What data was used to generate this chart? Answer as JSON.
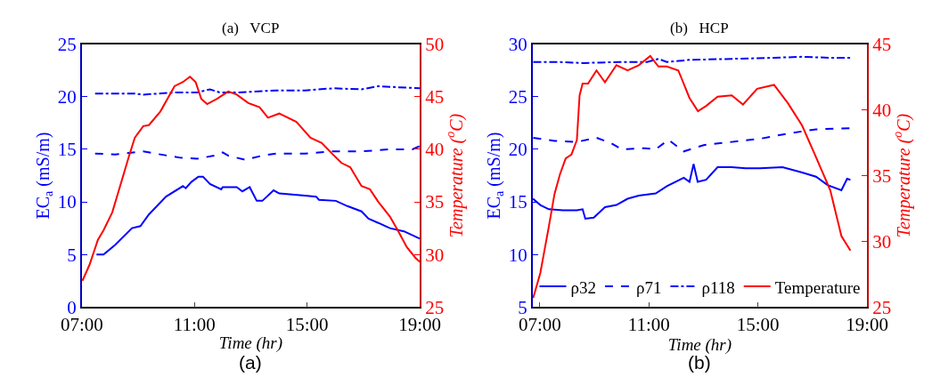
{
  "chart_data": [
    {
      "type": "line",
      "title": "(a)   VCP",
      "xlabel": "Time (hr)",
      "ylabel": "EC$_{a}$ (mS/m)",
      "y2label": "Temperature ($^{o}$C)",
      "annotations": [
        "(a)"
      ],
      "xlim": [
        7,
        19
      ],
      "xticks": [
        {
          "value": 7,
          "label": "07:00"
        },
        {
          "value": 11,
          "label": "11:00"
        },
        {
          "value": 15,
          "label": "15:00"
        },
        {
          "value": 19,
          "label": "19:00"
        }
      ],
      "ylim": [
        0,
        25
      ],
      "yticks": [
        0,
        5,
        10,
        15,
        20,
        25
      ],
      "y2lim": [
        25,
        50
      ],
      "y2ticks": [
        25,
        30,
        35,
        40,
        45,
        50
      ],
      "series": [
        {
          "color": "#0000ff",
          "line_style": "solid",
          "x": [
            7.52,
            7.77,
            8.18,
            8.78,
            9.08,
            9.38,
            9.99,
            10.59,
            10.69,
            10.89,
            11.14,
            11.3,
            11.55,
            11.95,
            12.0,
            12.5,
            12.7,
            12.96,
            13.21,
            13.41,
            13.81,
            14.01,
            14.92,
            15.32,
            15.42,
            16.02,
            16.43,
            16.93,
            17.18,
            17.53,
            17.94,
            18.44,
            19.0
          ],
          "values": [
            5.0,
            5.0,
            5.9,
            7.5,
            7.7,
            8.8,
            10.5,
            11.5,
            11.3,
            11.9,
            12.4,
            12.4,
            11.7,
            11.2,
            11.4,
            11.4,
            11.0,
            11.4,
            10.1,
            10.1,
            11.1,
            10.8,
            10.6,
            10.5,
            10.2,
            10.1,
            9.6,
            9.1,
            8.4,
            8.0,
            7.5,
            7.2,
            6.5
          ]
        },
        {
          "color": "#0000ff",
          "line_style": "dashed",
          "x": [
            7.47,
            8.18,
            9.18,
            9.59,
            10.49,
            11.09,
            11.7,
            12.0,
            12.2,
            12.8,
            13.41,
            13.91,
            14.92,
            15.92,
            16.93,
            17.94,
            18.74,
            19.0
          ],
          "values": [
            14.6,
            14.5,
            14.8,
            14.6,
            14.2,
            14.1,
            14.4,
            14.7,
            14.4,
            14.0,
            14.4,
            14.6,
            14.6,
            14.8,
            14.8,
            15.0,
            15.0,
            15.3
          ]
        },
        {
          "color": "#0000ff",
          "line_style": "dashdot",
          "x": [
            7.47,
            8.88,
            9.18,
            10.29,
            11.09,
            11.55,
            11.9,
            12.5,
            13.91,
            14.92,
            15.92,
            16.93,
            17.53,
            18.24,
            19.0
          ],
          "values": [
            20.3,
            20.3,
            20.2,
            20.4,
            20.4,
            20.7,
            20.4,
            20.4,
            20.6,
            20.6,
            20.8,
            20.7,
            21.0,
            20.9,
            20.8
          ]
        },
        {
          "color": "#ff0000",
          "line_style": "solid",
          "axis": "y2",
          "x": [
            7.02,
            7.27,
            7.57,
            7.77,
            8.08,
            8.38,
            8.68,
            8.88,
            9.18,
            9.38,
            9.79,
            10.29,
            10.59,
            10.84,
            11.04,
            11.24,
            11.45,
            11.8,
            12.2,
            12.5,
            12.91,
            13.31,
            13.61,
            14.01,
            14.62,
            15.12,
            15.52,
            15.92,
            16.22,
            16.53,
            16.93,
            17.23,
            17.53,
            17.94,
            18.24,
            18.54,
            18.84,
            19.0
          ],
          "values": [
            27.5,
            29.0,
            31.4,
            32.3,
            34.0,
            36.7,
            39.4,
            41.1,
            42.2,
            42.3,
            43.6,
            46.0,
            46.4,
            46.9,
            46.4,
            44.8,
            44.3,
            44.8,
            45.5,
            45.2,
            44.4,
            44.0,
            43.0,
            43.4,
            42.6,
            41.1,
            40.6,
            39.5,
            38.7,
            38.3,
            36.5,
            36.2,
            35.0,
            33.6,
            32.2,
            30.7,
            29.7,
            29.3
          ]
        }
      ]
    },
    {
      "type": "line",
      "title": "(b)   HCP",
      "xlabel": "Time (hr)",
      "ylabel": "EC$_{a}$ (mS/m)",
      "y2label": "Temperature ($^{o}$C)",
      "annotations": [
        "(b)"
      ],
      "xlim": [
        6.74,
        19
      ],
      "xticks": [
        {
          "value": 7,
          "label": "07:00"
        },
        {
          "value": 11,
          "label": "11:00"
        },
        {
          "value": 15,
          "label": "15:00"
        },
        {
          "value": 19,
          "label": "19:00"
        }
      ],
      "ylim": [
        5,
        30
      ],
      "yticks": [
        5,
        10,
        15,
        20,
        25,
        30
      ],
      "y2lim": [
        25,
        45
      ],
      "y2ticks": [
        25,
        30,
        35,
        40,
        45
      ],
      "legend": "bottom",
      "series": [
        {
          "name": "ρ32",
          "color": "#0000ff",
          "line_style": "solid",
          "x": [
            6.75,
            7.02,
            7.33,
            7.85,
            8.36,
            8.57,
            8.67,
            8.98,
            9.39,
            9.81,
            10.22,
            10.63,
            11.25,
            11.66,
            12.28,
            12.49,
            12.64,
            12.79,
            13.1,
            13.52,
            14.03,
            14.55,
            15.07,
            15.9,
            16.62,
            17.13,
            17.55,
            18.06,
            18.27,
            18.39
          ],
          "values": [
            15.3,
            14.7,
            14.3,
            14.2,
            14.2,
            14.3,
            13.4,
            13.5,
            14.5,
            14.7,
            15.3,
            15.6,
            15.8,
            16.5,
            17.3,
            16.9,
            18.6,
            16.9,
            17.1,
            18.3,
            18.3,
            18.2,
            18.2,
            18.3,
            17.8,
            17.4,
            16.6,
            16.1,
            17.2,
            17.1
          ]
        },
        {
          "name": "ρ71",
          "color": "#0000ff",
          "line_style": "dashed",
          "x": [
            6.76,
            7.54,
            8.36,
            9.08,
            9.6,
            10.01,
            10.84,
            11.25,
            11.72,
            12.28,
            13.01,
            14.04,
            15.07,
            16.1,
            17.13,
            18.39
          ],
          "values": [
            21.1,
            20.8,
            20.7,
            21.1,
            20.6,
            20.0,
            20.1,
            20.0,
            20.9,
            19.8,
            20.4,
            20.7,
            21.0,
            21.5,
            21.9,
            22.0
          ]
        },
        {
          "name": "ρ118",
          "color": "#0000ff",
          "line_style": "dashdot",
          "x": [
            6.76,
            7.74,
            8.57,
            9.91,
            10.94,
            11.35,
            11.66,
            12.49,
            14.04,
            15.59,
            16.62,
            17.65,
            18.39
          ],
          "values": [
            28.3,
            28.3,
            28.2,
            28.3,
            28.3,
            28.6,
            28.3,
            28.5,
            28.6,
            28.7,
            28.8,
            28.7,
            28.7
          ]
        },
        {
          "name": "Temperature",
          "color": "#ff0000",
          "line_style": "solid",
          "axis": "y2",
          "x": [
            6.76,
            7.02,
            7.33,
            7.54,
            7.74,
            7.95,
            8.16,
            8.36,
            8.46,
            8.57,
            8.77,
            9.08,
            9.39,
            9.81,
            10.22,
            10.63,
            11.05,
            11.35,
            11.66,
            12.08,
            12.49,
            12.8,
            13.1,
            13.52,
            14.04,
            14.45,
            14.97,
            15.59,
            16.1,
            16.62,
            17.13,
            17.65,
            18.06,
            18.39
          ],
          "values": [
            25.7,
            27.6,
            31.1,
            33.6,
            35.1,
            36.3,
            36.6,
            37.7,
            41.1,
            42.0,
            42.0,
            43.0,
            42.1,
            43.4,
            43.0,
            43.4,
            44.1,
            43.3,
            43.3,
            43.0,
            40.9,
            39.9,
            40.3,
            41.0,
            41.1,
            40.4,
            41.6,
            41.9,
            40.5,
            38.8,
            36.4,
            33.9,
            30.4,
            29.3
          ]
        }
      ]
    }
  ]
}
